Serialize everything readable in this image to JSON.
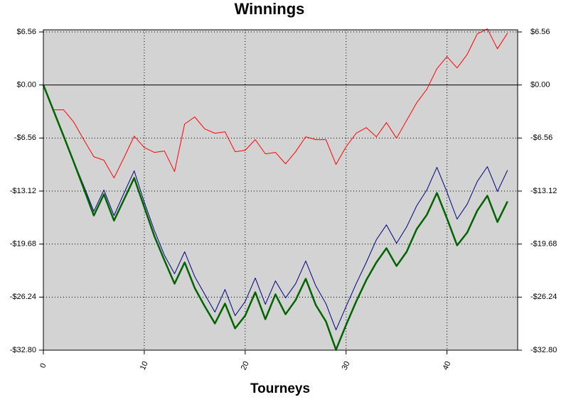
{
  "chart_data": {
    "type": "line",
    "title": "Winnings",
    "xlabel": "Tourneys",
    "x": [
      0,
      1,
      2,
      3,
      4,
      5,
      6,
      7,
      8,
      9,
      10,
      11,
      12,
      13,
      14,
      15,
      16,
      17,
      18,
      19,
      20,
      21,
      22,
      23,
      24,
      25,
      26,
      27,
      28,
      29,
      30,
      31,
      32,
      33,
      34,
      35,
      36,
      37,
      38,
      39,
      40,
      41,
      42,
      43,
      44,
      45,
      46
    ],
    "series": [
      {
        "color": "#ff0000",
        "width": 1,
        "values": [
          0,
          -3.07,
          -3.07,
          -4.57,
          -6.76,
          -8.87,
          -9.31,
          -11.5,
          -8.96,
          -6.32,
          -7.73,
          -8.34,
          -8.17,
          -10.71,
          -4.83,
          -3.95,
          -5.44,
          -5.97,
          -5.79,
          -8.25,
          -8.08,
          -6.76,
          -8.52,
          -8.34,
          -9.75,
          -8.25,
          -6.41,
          -6.76,
          -6.76,
          -9.83,
          -7.64,
          -5.97,
          -5.27,
          -6.41,
          -4.65,
          -6.58,
          -4.39,
          -2.19,
          -0.53,
          2.02,
          3.51,
          2.11,
          3.78,
          6.32,
          6.94,
          4.48,
          6.41
        ]
      },
      {
        "color": "#000080",
        "width": 1,
        "values": [
          0,
          -3.16,
          -6.23,
          -9.39,
          -12.47,
          -15.63,
          -12.99,
          -16.15,
          -13.35,
          -10.62,
          -14.49,
          -18.0,
          -21.07,
          -23.35,
          -20.63,
          -23.7,
          -25.9,
          -28.09,
          -25.29,
          -28.53,
          -26.78,
          -23.88,
          -27.13,
          -24.23,
          -26.34,
          -24.58,
          -21.77,
          -24.85,
          -27.04,
          -30.29,
          -27.39,
          -24.58,
          -21.95,
          -19.14,
          -17.3,
          -19.58,
          -17.56,
          -14.93,
          -12.99,
          -10.18,
          -13.26,
          -16.59,
          -14.75,
          -11.94,
          -10.1,
          -13.17,
          -10.54
        ]
      },
      {
        "color": "#006400",
        "width": 2.5,
        "values": [
          0,
          -3.16,
          -6.3,
          -9.5,
          -12.8,
          -16.15,
          -13.52,
          -16.77,
          -14.14,
          -11.5,
          -15.1,
          -18.7,
          -21.69,
          -24.58,
          -21.95,
          -25.11,
          -27.39,
          -29.5,
          -27.04,
          -30.11,
          -28.53,
          -25.64,
          -28.97,
          -25.9,
          -28.36,
          -26.6,
          -23.97,
          -27.22,
          -29.24,
          -32.75,
          -29.68,
          -26.78,
          -24.14,
          -21.95,
          -20.19,
          -22.39,
          -20.63,
          -17.82,
          -16.07,
          -13.35,
          -16.51,
          -19.84,
          -18.26,
          -15.54,
          -13.7,
          -16.95,
          -14.4
        ]
      }
    ],
    "xlim": [
      0,
      47
    ],
    "xticks": [
      0,
      10,
      20,
      30,
      40
    ],
    "ylim": [
      -32.8,
      6.56
    ],
    "yticks": [
      {
        "value": 6.56,
        "label": "$6.56"
      },
      {
        "value": 0,
        "label": "$0.00"
      },
      {
        "value": -6.56,
        "label": "-$6.56"
      },
      {
        "value": -13.12,
        "label": "-$13.12"
      },
      {
        "value": -19.68,
        "label": "-$19.68"
      },
      {
        "value": -26.24,
        "label": "-$26.24"
      },
      {
        "value": -32.8,
        "label": "-$32.80"
      }
    ],
    "grid": true,
    "background": "#d3d3d3"
  }
}
